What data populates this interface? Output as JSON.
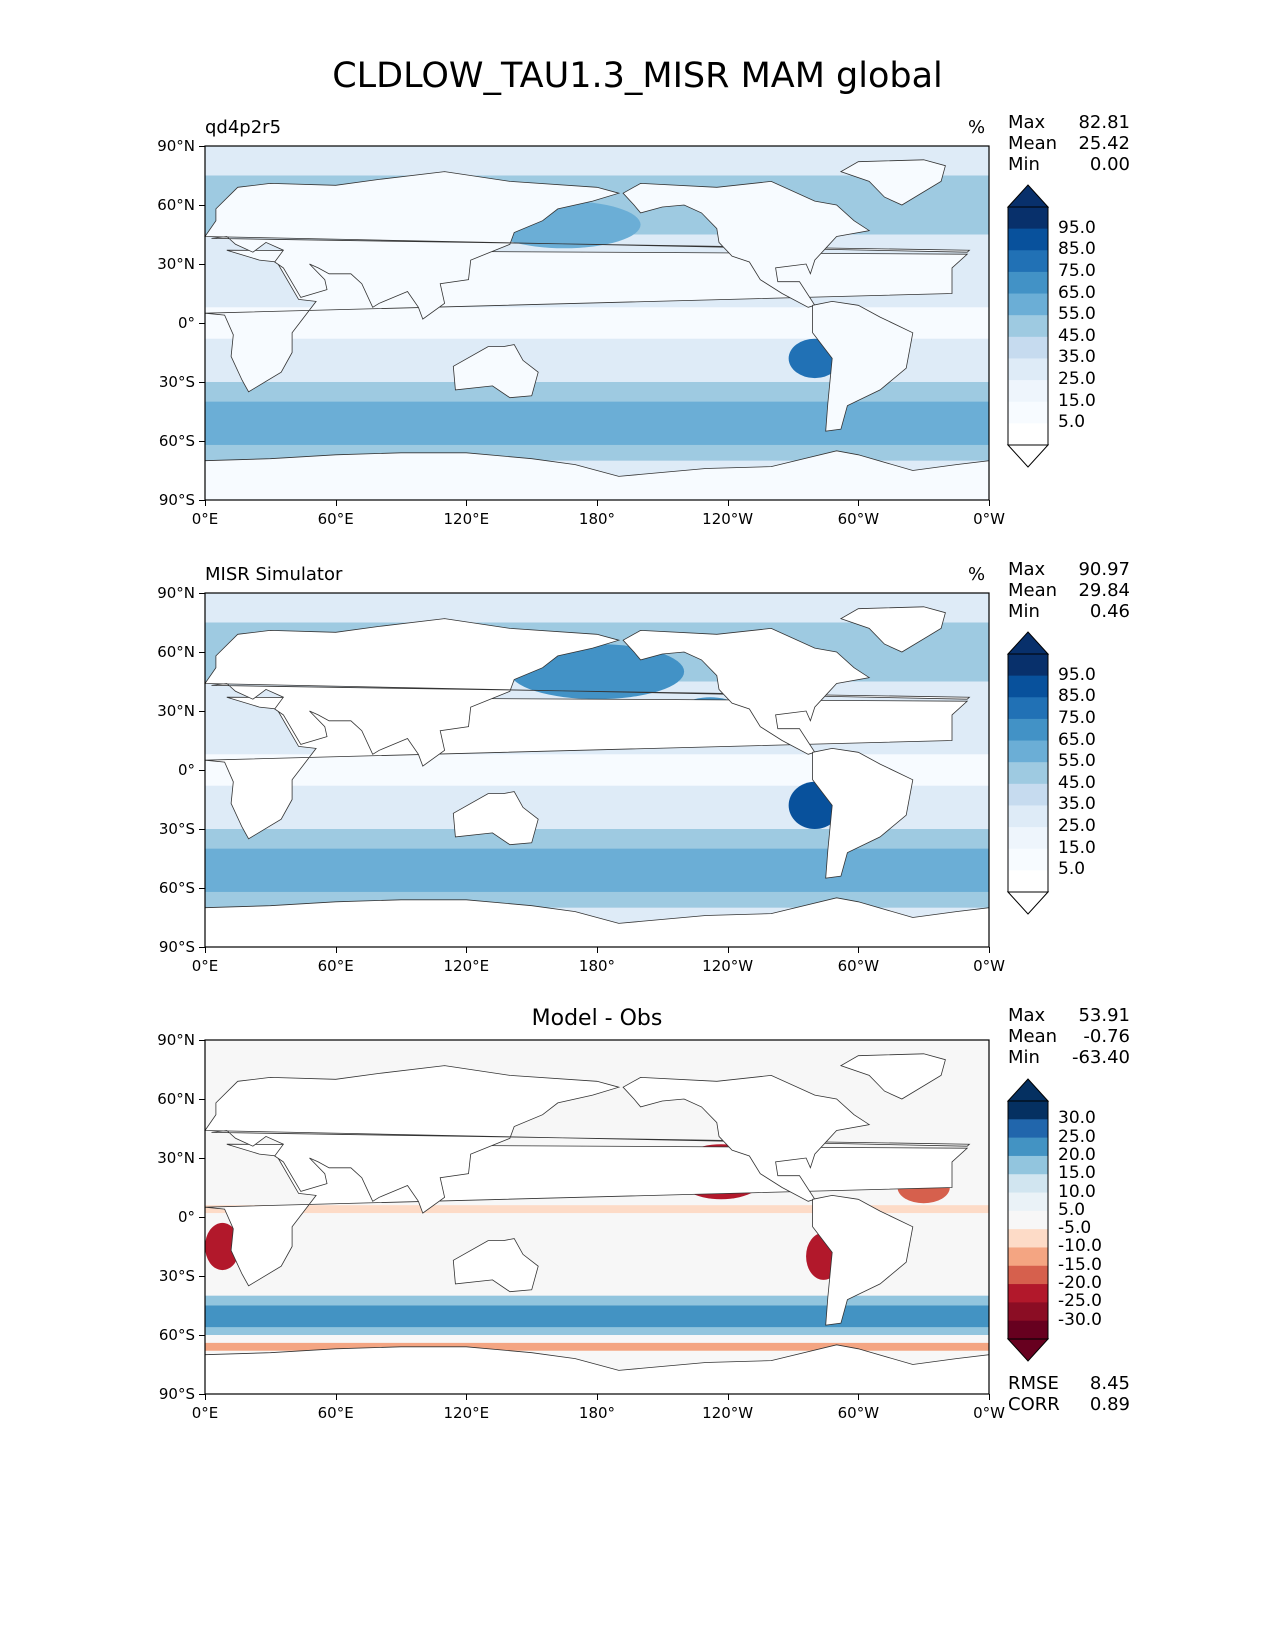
{
  "title": "CLDLOW_TAU1.3_MISR MAM global",
  "colors": {
    "blues": [
      "#f7fbff",
      "#deebf7",
      "#c6dbef",
      "#9ecae1",
      "#6baed6",
      "#4292c6",
      "#2171b5",
      "#08519c",
      "#08306b"
    ],
    "diff": [
      "#67001f",
      "#b2182b",
      "#d6604d",
      "#f4a582",
      "#fddbc7",
      "#f7f7f7",
      "#d1e5f0",
      "#92c5de",
      "#4393c3",
      "#2166ac",
      "#053061"
    ],
    "land": "#ffffff",
    "coast": "#333333"
  },
  "axes": {
    "y_ticks": [
      "90°N",
      "60°N",
      "30°N",
      "0°",
      "30°S",
      "60°S",
      "90°S"
    ],
    "x_ticks": [
      "0°E",
      "60°E",
      "120°E",
      "180°",
      "120°W",
      "60°W",
      "0°W"
    ]
  },
  "panels": [
    {
      "label": "qd4p2r5",
      "units": "%",
      "stats": {
        "max_label": "Max",
        "max": "82.81",
        "mean_label": "Mean",
        "mean": "25.42",
        "min_label": "Min",
        "min": "0.00"
      },
      "colorbar_labels": [
        "95.0",
        "85.0",
        "75.0",
        "65.0",
        "55.0",
        "45.0",
        "35.0",
        "25.0",
        "15.0",
        "5.0"
      ]
    },
    {
      "label": "MISR Simulator",
      "units": "%",
      "stats": {
        "max_label": "Max",
        "max": "90.97",
        "mean_label": "Mean",
        "mean": "29.84",
        "min_label": "Min",
        "min": "0.46"
      },
      "colorbar_labels": [
        "95.0",
        "85.0",
        "75.0",
        "65.0",
        "55.0",
        "45.0",
        "35.0",
        "25.0",
        "15.0",
        "5.0"
      ]
    },
    {
      "title": "Model - Obs",
      "stats": {
        "max_label": "Max",
        "max": "53.91",
        "mean_label": "Mean",
        "mean": "-0.76",
        "min_label": "Min",
        "min": "-63.40"
      },
      "colorbar_labels": [
        "30.0",
        "25.0",
        "20.0",
        "15.0",
        "10.0",
        "5.0",
        "-5.0",
        "-10.0",
        "-15.0",
        "-20.0",
        "-25.0",
        "-30.0"
      ],
      "metrics": {
        "rmse_label": "RMSE",
        "rmse": "8.45",
        "corr_label": "CORR",
        "corr": "0.89"
      }
    }
  ],
  "chart_data": [
    {
      "type": "heatmap",
      "title": "qd4p2r5",
      "units": "%",
      "xlabel": "",
      "ylabel": "",
      "xlim": [
        0,
        360
      ],
      "ylim": [
        -90,
        90
      ],
      "x_tick_labels": [
        "0°E",
        "60°E",
        "120°E",
        "180°",
        "120°W",
        "60°W",
        "0°W"
      ],
      "y_tick_labels": [
        "90°N",
        "60°N",
        "30°N",
        "0°",
        "30°S",
        "60°S",
        "90°S"
      ],
      "colorbar_levels": [
        5,
        15,
        25,
        35,
        45,
        55,
        65,
        75,
        85,
        95
      ],
      "max": 82.81,
      "mean": 25.42,
      "min": 0.0
    },
    {
      "type": "heatmap",
      "title": "MISR Simulator",
      "units": "%",
      "xlim": [
        0,
        360
      ],
      "ylim": [
        -90,
        90
      ],
      "colorbar_levels": [
        5,
        15,
        25,
        35,
        45,
        55,
        65,
        75,
        85,
        95
      ],
      "max": 90.97,
      "mean": 29.84,
      "min": 0.46
    },
    {
      "type": "heatmap",
      "title": "Model - Obs",
      "xlim": [
        0,
        360
      ],
      "ylim": [
        -90,
        90
      ],
      "colorbar_levels": [
        -30,
        -25,
        -20,
        -15,
        -10,
        -5,
        5,
        10,
        15,
        20,
        25,
        30
      ],
      "max": 53.91,
      "mean": -0.76,
      "min": -63.4,
      "rmse": 8.45,
      "corr": 0.89
    }
  ]
}
